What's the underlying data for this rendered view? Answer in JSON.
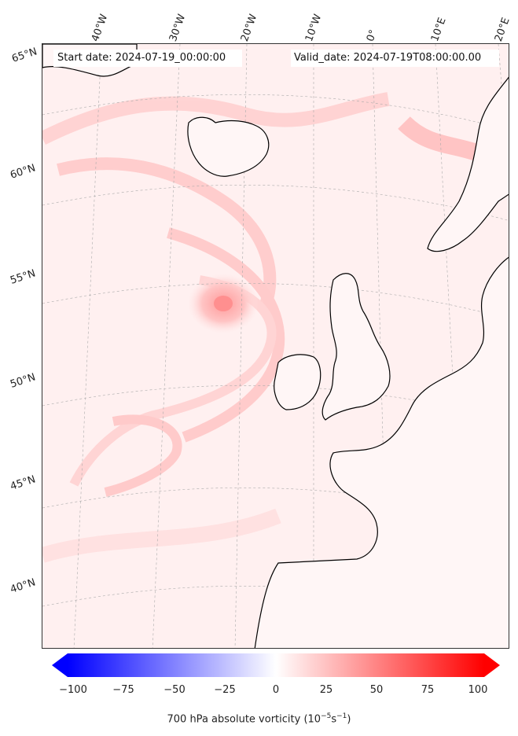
{
  "header": {
    "start_date": "Start date: 2024-07-19_00:00:00",
    "valid_date": "Valid_date: 2024-07-19T08:00:00.00"
  },
  "longitude_labels": [
    "40°W",
    "30°W",
    "20°W",
    "10°W",
    "0°",
    "10°E",
    "20°E"
  ],
  "latitude_labels": [
    "65°N",
    "60°N",
    "55°N",
    "50°N",
    "45°N",
    "40°N"
  ],
  "colorbar": {
    "ticks": [
      "−100",
      "−75",
      "−50",
      "−25",
      "0",
      "25",
      "50",
      "75",
      "100"
    ],
    "label_prefix": "700 hPa absolute vorticity (10",
    "label_exp1": "−5",
    "label_mid": "s",
    "label_exp2": "−1",
    "label_suffix": ")",
    "min_color": "#0000ff",
    "mid_color": "#ffffff",
    "max_color": "#ff0000"
  },
  "colors": {
    "background_field": "#fff2f2",
    "coastline": "#000000",
    "gridline": "#999999"
  }
}
